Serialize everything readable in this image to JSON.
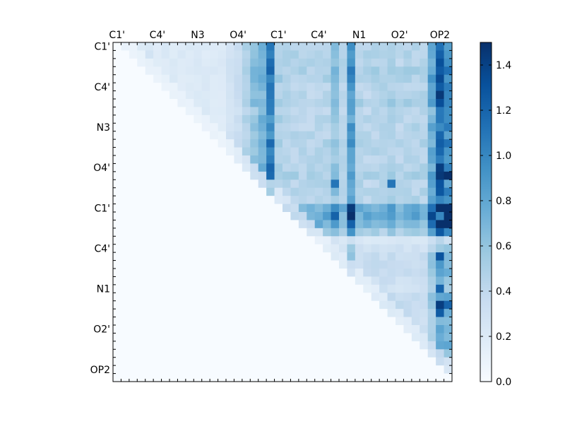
{
  "chart_data": {
    "type": "heatmap",
    "title": "",
    "xlabel": "",
    "ylabel": "",
    "x_tick_labels": [
      "C1'",
      "C4'",
      "N3",
      "O4'",
      "C1'",
      "C4'",
      "N1",
      "O2'",
      "OP2"
    ],
    "y_tick_labels": [
      "C1'",
      "C4'",
      "N3",
      "O4'",
      "C1'",
      "C4'",
      "N1",
      "O2'",
      "OP2"
    ],
    "grid_size": 42,
    "colormap": "Blues",
    "colorbar": {
      "min": 0.0,
      "max": 1.5,
      "ticks": [
        0.0,
        0.2,
        0.4,
        0.6,
        0.8,
        1.0,
        1.2,
        1.4
      ],
      "tick_labels": [
        "0.0",
        "0.2",
        "0.4",
        "0.6",
        "0.8",
        "1.0",
        "1.2",
        "1.4"
      ]
    },
    "structure": "upper-triangular matrix of pairwise values; lower triangle and diagonal are ~0",
    "column_profile": [
      0.05,
      0.08,
      0.06,
      0.07,
      0.1,
      0.05,
      0.06,
      0.05,
      0.05,
      0.05,
      0.05,
      0.05,
      0.05,
      0.05,
      0.12,
      0.2,
      0.3,
      0.42,
      0.55,
      0.85,
      0.35,
      0.3,
      0.3,
      0.28,
      0.28,
      0.3,
      0.3,
      0.45,
      0.28,
      0.7,
      0.3,
      0.28,
      0.3,
      0.3,
      0.33,
      0.28,
      0.3,
      0.3,
      0.3,
      0.6,
      0.95,
      0.8
    ],
    "row_profile": [
      0.3,
      0.32,
      0.32,
      0.35,
      0.34,
      0.3,
      0.3,
      0.35,
      0.28,
      0.3,
      0.3,
      0.3,
      0.32,
      0.3,
      0.3,
      0.32,
      0.35,
      0.3,
      0.3,
      0.3,
      0.6,
      0.65,
      0.55,
      0.35,
      0.08,
      0.15,
      0.2,
      0.22,
      0.2,
      0.18,
      0.15,
      0.22,
      0.25,
      0.2,
      0.2,
      0.2,
      0.22,
      0.25,
      0.18,
      0.15,
      0.1,
      0.0
    ],
    "hotspots": [
      {
        "row": 4,
        "col": 40,
        "value": 1.35
      },
      {
        "row": 6,
        "col": 40,
        "value": 1.45
      },
      {
        "row": 15,
        "col": 40,
        "value": 1.42
      },
      {
        "row": 16,
        "col": 40,
        "value": 1.45
      },
      {
        "row": 16,
        "col": 41,
        "value": 1.5
      },
      {
        "row": 17,
        "col": 40,
        "value": 1.3
      },
      {
        "row": 18,
        "col": 40,
        "value": 1.28
      },
      {
        "row": 21,
        "col": 40,
        "value": 1.0
      },
      {
        "row": 26,
        "col": 40,
        "value": 1.3
      },
      {
        "row": 30,
        "col": 40,
        "value": 1.2
      },
      {
        "row": 32,
        "col": 40,
        "value": 1.42
      },
      {
        "row": 32,
        "col": 41,
        "value": 1.2
      },
      {
        "row": 33,
        "col": 40,
        "value": 1.25
      },
      {
        "row": 17,
        "col": 27,
        "value": 1.1
      },
      {
        "row": 17,
        "col": 34,
        "value": 1.1
      },
      {
        "row": 5,
        "col": 19,
        "value": 1.1
      },
      {
        "row": 8,
        "col": 19,
        "value": 1.05
      }
    ]
  }
}
